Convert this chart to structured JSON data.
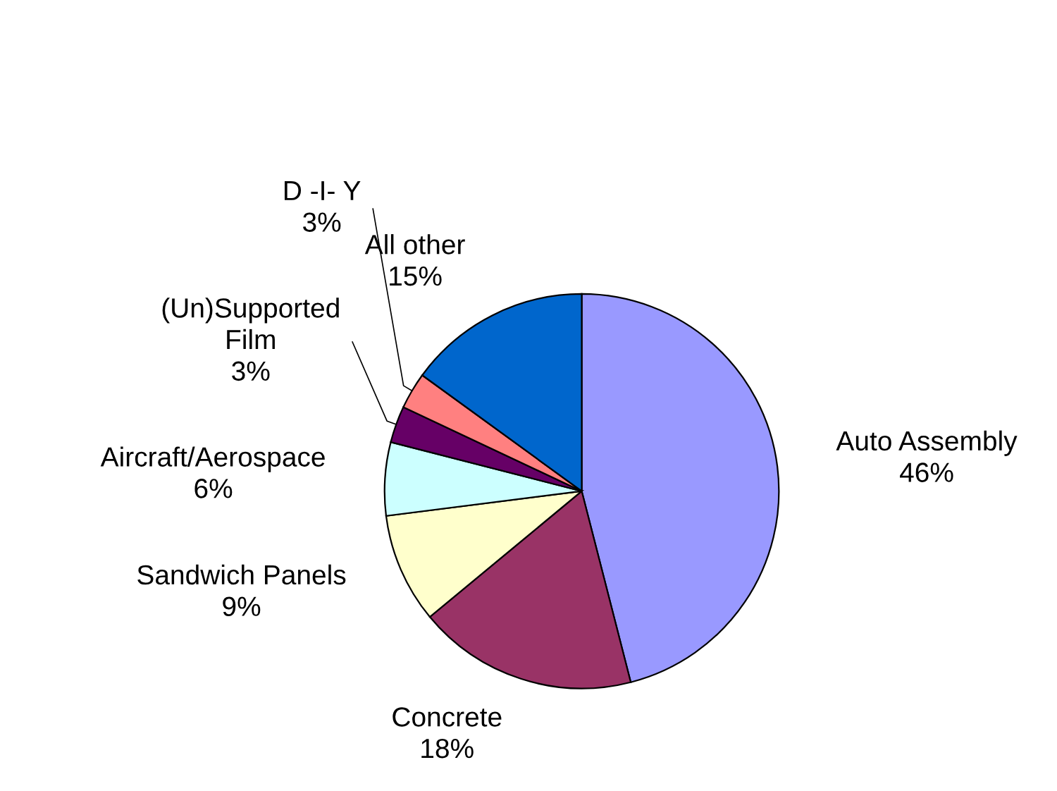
{
  "chart_data": {
    "type": "pie",
    "categories": [
      "Auto Assembly",
      "Concrete",
      "Sandwich Panels",
      "Aircraft/Aerospace",
      "(Un)Supported\nFilm",
      "D -I- Y",
      "All other"
    ],
    "values": [
      46,
      18,
      9,
      6,
      3,
      3,
      15
    ],
    "colors": [
      "#9999ff",
      "#993366",
      "#ffffcc",
      "#ccffff",
      "#660066",
      "#ff8080",
      "#0066cc"
    ],
    "value_labels": [
      "46%",
      "18%",
      "9%",
      "6%",
      "3%",
      "3%",
      "15%"
    ],
    "legend": false
  }
}
